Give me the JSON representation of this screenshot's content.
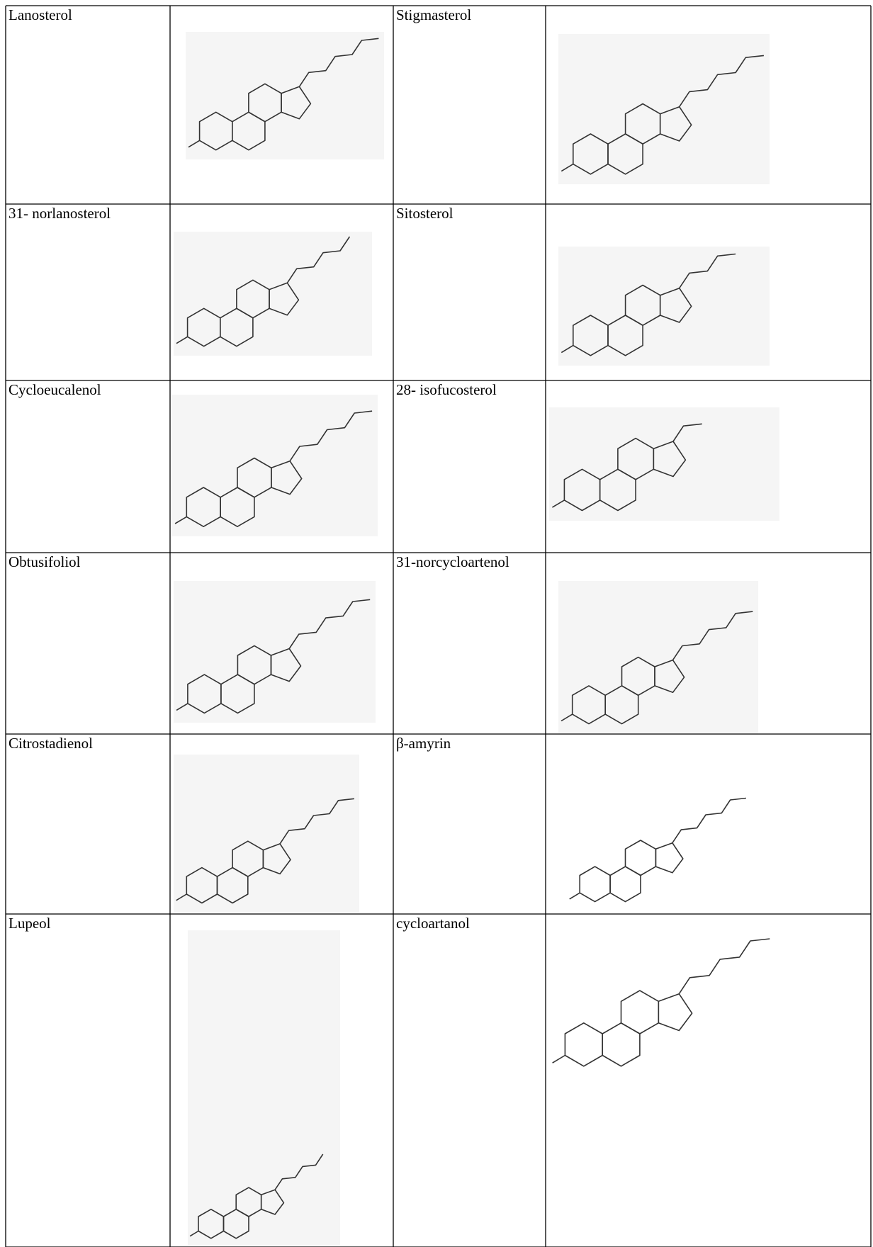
{
  "table": {
    "rows": [
      [
        "Lanosterol",
        "Stigmasterol"
      ],
      [
        "31- norlanosterol",
        "Sitosterol"
      ],
      [
        "Cycloeucalenol",
        "28- isofucosterol"
      ],
      [
        "Obtusifoliol",
        "31-norcycloartenol"
      ],
      [
        "Citrostadienol",
        "β-amyrin"
      ],
      [
        "Lupeol",
        "cycloartanol"
      ]
    ]
  }
}
